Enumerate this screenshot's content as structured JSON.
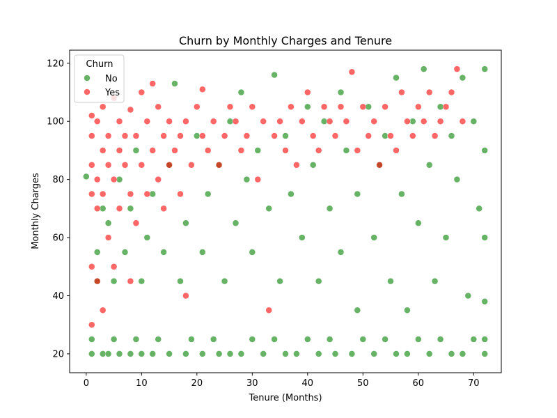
{
  "chart_data": {
    "type": "scatter",
    "title": "Churn by Monthly Charges and Tenure",
    "xlabel": "Tenure (Months)",
    "ylabel": "Monthly Charges",
    "xlim": [
      -3,
      75
    ],
    "ylim": [
      13.5,
      124.5
    ],
    "xticks": [
      0,
      10,
      20,
      30,
      40,
      50,
      60,
      70
    ],
    "yticks": [
      20,
      40,
      60,
      80,
      100,
      120
    ],
    "xtick_labels": [
      "0",
      "10",
      "20",
      "30",
      "40",
      "50",
      "60",
      "70"
    ],
    "ytick_labels": [
      "20",
      "40",
      "60",
      "80",
      "100",
      "120"
    ],
    "grid": false,
    "legend": {
      "title": "Churn",
      "placement": "top-left"
    },
    "series": [
      {
        "name": "No",
        "color": "#008000",
        "points": [
          [
            0,
            81
          ],
          [
            1,
            20
          ],
          [
            1,
            25
          ],
          [
            2,
            45
          ],
          [
            2,
            55
          ],
          [
            3,
            20
          ],
          [
            3,
            70
          ],
          [
            4,
            20
          ],
          [
            4,
            65
          ],
          [
            5,
            25
          ],
          [
            5,
            45
          ],
          [
            6,
            20
          ],
          [
            6,
            80
          ],
          [
            7,
            55
          ],
          [
            8,
            20
          ],
          [
            8,
            70
          ],
          [
            9,
            25
          ],
          [
            9,
            90
          ],
          [
            10,
            20
          ],
          [
            10,
            45
          ],
          [
            11,
            60
          ],
          [
            12,
            20
          ],
          [
            12,
            75
          ],
          [
            13,
            25
          ],
          [
            14,
            55
          ],
          [
            15,
            20
          ],
          [
            15,
            85
          ],
          [
            16,
            113
          ],
          [
            17,
            45
          ],
          [
            18,
            20
          ],
          [
            18,
            65
          ],
          [
            19,
            25
          ],
          [
            20,
            95
          ],
          [
            21,
            20
          ],
          [
            21,
            55
          ],
          [
            22,
            75
          ],
          [
            23,
            25
          ],
          [
            24,
            20
          ],
          [
            24,
            85
          ],
          [
            25,
            45
          ],
          [
            26,
            20
          ],
          [
            26,
            100
          ],
          [
            27,
            65
          ],
          [
            28,
            20
          ],
          [
            28,
            110
          ],
          [
            29,
            80
          ],
          [
            30,
            25
          ],
          [
            30,
            55
          ],
          [
            31,
            90
          ],
          [
            32,
            20
          ],
          [
            33,
            70
          ],
          [
            34,
            25
          ],
          [
            34,
            116
          ],
          [
            35,
            45
          ],
          [
            36,
            20
          ],
          [
            36,
            95
          ],
          [
            37,
            75
          ],
          [
            38,
            20
          ],
          [
            39,
            60
          ],
          [
            40,
            25
          ],
          [
            40,
            105
          ],
          [
            41,
            85
          ],
          [
            42,
            20
          ],
          [
            42,
            45
          ],
          [
            43,
            100
          ],
          [
            44,
            25
          ],
          [
            44,
            70
          ],
          [
            45,
            20
          ],
          [
            46,
            55
          ],
          [
            46,
            110
          ],
          [
            47,
            90
          ],
          [
            48,
            20
          ],
          [
            49,
            35
          ],
          [
            49,
            75
          ],
          [
            50,
            25
          ],
          [
            51,
            105
          ],
          [
            52,
            20
          ],
          [
            52,
            60
          ],
          [
            53,
            85
          ],
          [
            54,
            25
          ],
          [
            54,
            95
          ],
          [
            55,
            45
          ],
          [
            56,
            20
          ],
          [
            56,
            115
          ],
          [
            57,
            75
          ],
          [
            58,
            20
          ],
          [
            58,
            35
          ],
          [
            59,
            100
          ],
          [
            60,
            25
          ],
          [
            60,
            65
          ],
          [
            61,
            118
          ],
          [
            62,
            20
          ],
          [
            62,
            85
          ],
          [
            63,
            45
          ],
          [
            64,
            25
          ],
          [
            64,
            105
          ],
          [
            65,
            60
          ],
          [
            66,
            20
          ],
          [
            66,
            95
          ],
          [
            67,
            80
          ],
          [
            68,
            20
          ],
          [
            68,
            115
          ],
          [
            69,
            40
          ],
          [
            70,
            25
          ],
          [
            70,
            100
          ],
          [
            71,
            70
          ],
          [
            72,
            20
          ],
          [
            72,
            118
          ],
          [
            72,
            90
          ],
          [
            72,
            60
          ],
          [
            72,
            25
          ],
          [
            72,
            38
          ]
        ]
      },
      {
        "name": "Yes",
        "color": "#ff0000",
        "points": [
          [
            1,
            102
          ],
          [
            1,
            95
          ],
          [
            1,
            85
          ],
          [
            1,
            75
          ],
          [
            1,
            50
          ],
          [
            1,
            30
          ],
          [
            2,
            100
          ],
          [
            2,
            80
          ],
          [
            2,
            70
          ],
          [
            2,
            45
          ],
          [
            3,
            105
          ],
          [
            3,
            90
          ],
          [
            3,
            75
          ],
          [
            3,
            35
          ],
          [
            4,
            95
          ],
          [
            4,
            85
          ],
          [
            4,
            60
          ],
          [
            5,
            108
          ],
          [
            5,
            80
          ],
          [
            5,
            50
          ],
          [
            6,
            100
          ],
          [
            6,
            90
          ],
          [
            6,
            70
          ],
          [
            7,
            95
          ],
          [
            7,
            85
          ],
          [
            8,
            104
          ],
          [
            8,
            75
          ],
          [
            8,
            45
          ],
          [
            9,
            95
          ],
          [
            9,
            65
          ],
          [
            10,
            110
          ],
          [
            10,
            85
          ],
          [
            11,
            100
          ],
          [
            11,
            75
          ],
          [
            12,
            113
          ],
          [
            12,
            90
          ],
          [
            13,
            105
          ],
          [
            13,
            80
          ],
          [
            14,
            95
          ],
          [
            14,
            70
          ],
          [
            15,
            100
          ],
          [
            15,
            85
          ],
          [
            16,
            90
          ],
          [
            17,
            95
          ],
          [
            17,
            75
          ],
          [
            18,
            100
          ],
          [
            18,
            40
          ],
          [
            19,
            85
          ],
          [
            20,
            105
          ],
          [
            21,
            111
          ],
          [
            21,
            95
          ],
          [
            22,
            90
          ],
          [
            23,
            100
          ],
          [
            24,
            85
          ],
          [
            25,
            95
          ],
          [
            26,
            105
          ],
          [
            27,
            100
          ],
          [
            28,
            90
          ],
          [
            29,
            95
          ],
          [
            30,
            105
          ],
          [
            31,
            80
          ],
          [
            32,
            100
          ],
          [
            33,
            35
          ],
          [
            34,
            95
          ],
          [
            35,
            100
          ],
          [
            36,
            90
          ],
          [
            37,
            105
          ],
          [
            38,
            85
          ],
          [
            39,
            100
          ],
          [
            40,
            110
          ],
          [
            41,
            95
          ],
          [
            42,
            90
          ],
          [
            43,
            105
          ],
          [
            44,
            100
          ],
          [
            45,
            95
          ],
          [
            46,
            105
          ],
          [
            47,
            100
          ],
          [
            48,
            117
          ],
          [
            49,
            90
          ],
          [
            50,
            105
          ],
          [
            51,
            95
          ],
          [
            52,
            100
          ],
          [
            53,
            85
          ],
          [
            54,
            105
          ],
          [
            55,
            95
          ],
          [
            56,
            90
          ],
          [
            57,
            110
          ],
          [
            58,
            100
          ],
          [
            59,
            95
          ],
          [
            60,
            105
          ],
          [
            61,
            100
          ],
          [
            62,
            110
          ],
          [
            63,
            95
          ],
          [
            64,
            100
          ],
          [
            65,
            105
          ],
          [
            66,
            110
          ],
          [
            67,
            118
          ],
          [
            68,
            100
          ]
        ]
      }
    ]
  }
}
